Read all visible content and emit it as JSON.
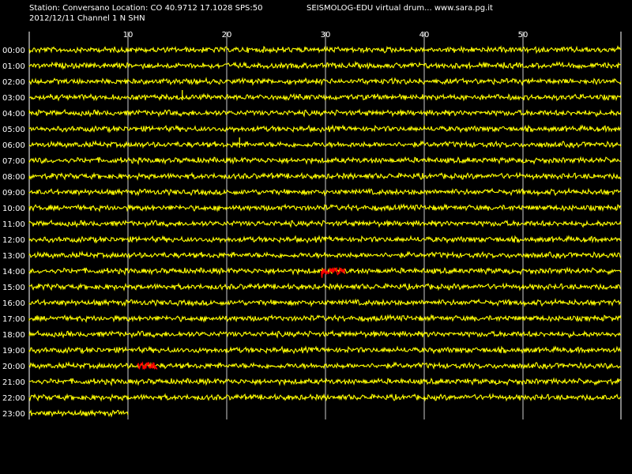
{
  "header": {
    "station_line": "Station: Conversano Location: CO 40.9712 17.1028 SPS:50",
    "subtitle": "SEISMOLOG-EDU virtual drum... www.sara.pg.it",
    "date_channel": "2012/12/11  Channel 1 N SHN"
  },
  "colors": {
    "background": "#000000",
    "trace": "#ffff00",
    "event": "#ff0000",
    "grid": "#ffffff",
    "text": "#ffffff"
  },
  "chart_data": {
    "type": "line",
    "title": "SEISMOLOG-EDU virtual drum... www.sara.pg.it",
    "xlabel": "",
    "ylabel": "",
    "x_ticks": [
      10,
      20,
      30,
      40,
      50
    ],
    "xlim": [
      0,
      61
    ],
    "grid": true,
    "rows": [
      "00:00",
      "01:00",
      "02:00",
      "03:00",
      "04:00",
      "05:00",
      "06:00",
      "07:00",
      "08:00",
      "09:00",
      "10:00",
      "11:00",
      "12:00",
      "13:00",
      "14:00",
      "15:00",
      "16:00",
      "17:00",
      "18:00",
      "19:00",
      "20:00",
      "21:00",
      "22:00",
      "23:00"
    ],
    "last_row_end_minute": 10,
    "events": [
      {
        "row": "14:00",
        "start_minute": 29.6,
        "end_minute": 32,
        "color": "red"
      },
      {
        "row": "20:00",
        "start_minute": 11,
        "end_minute": 13,
        "color": "red"
      }
    ],
    "spikes": [
      {
        "row": "03:00",
        "minute": 15.5
      },
      {
        "row": "06:00",
        "minute": 21.3
      }
    ]
  }
}
